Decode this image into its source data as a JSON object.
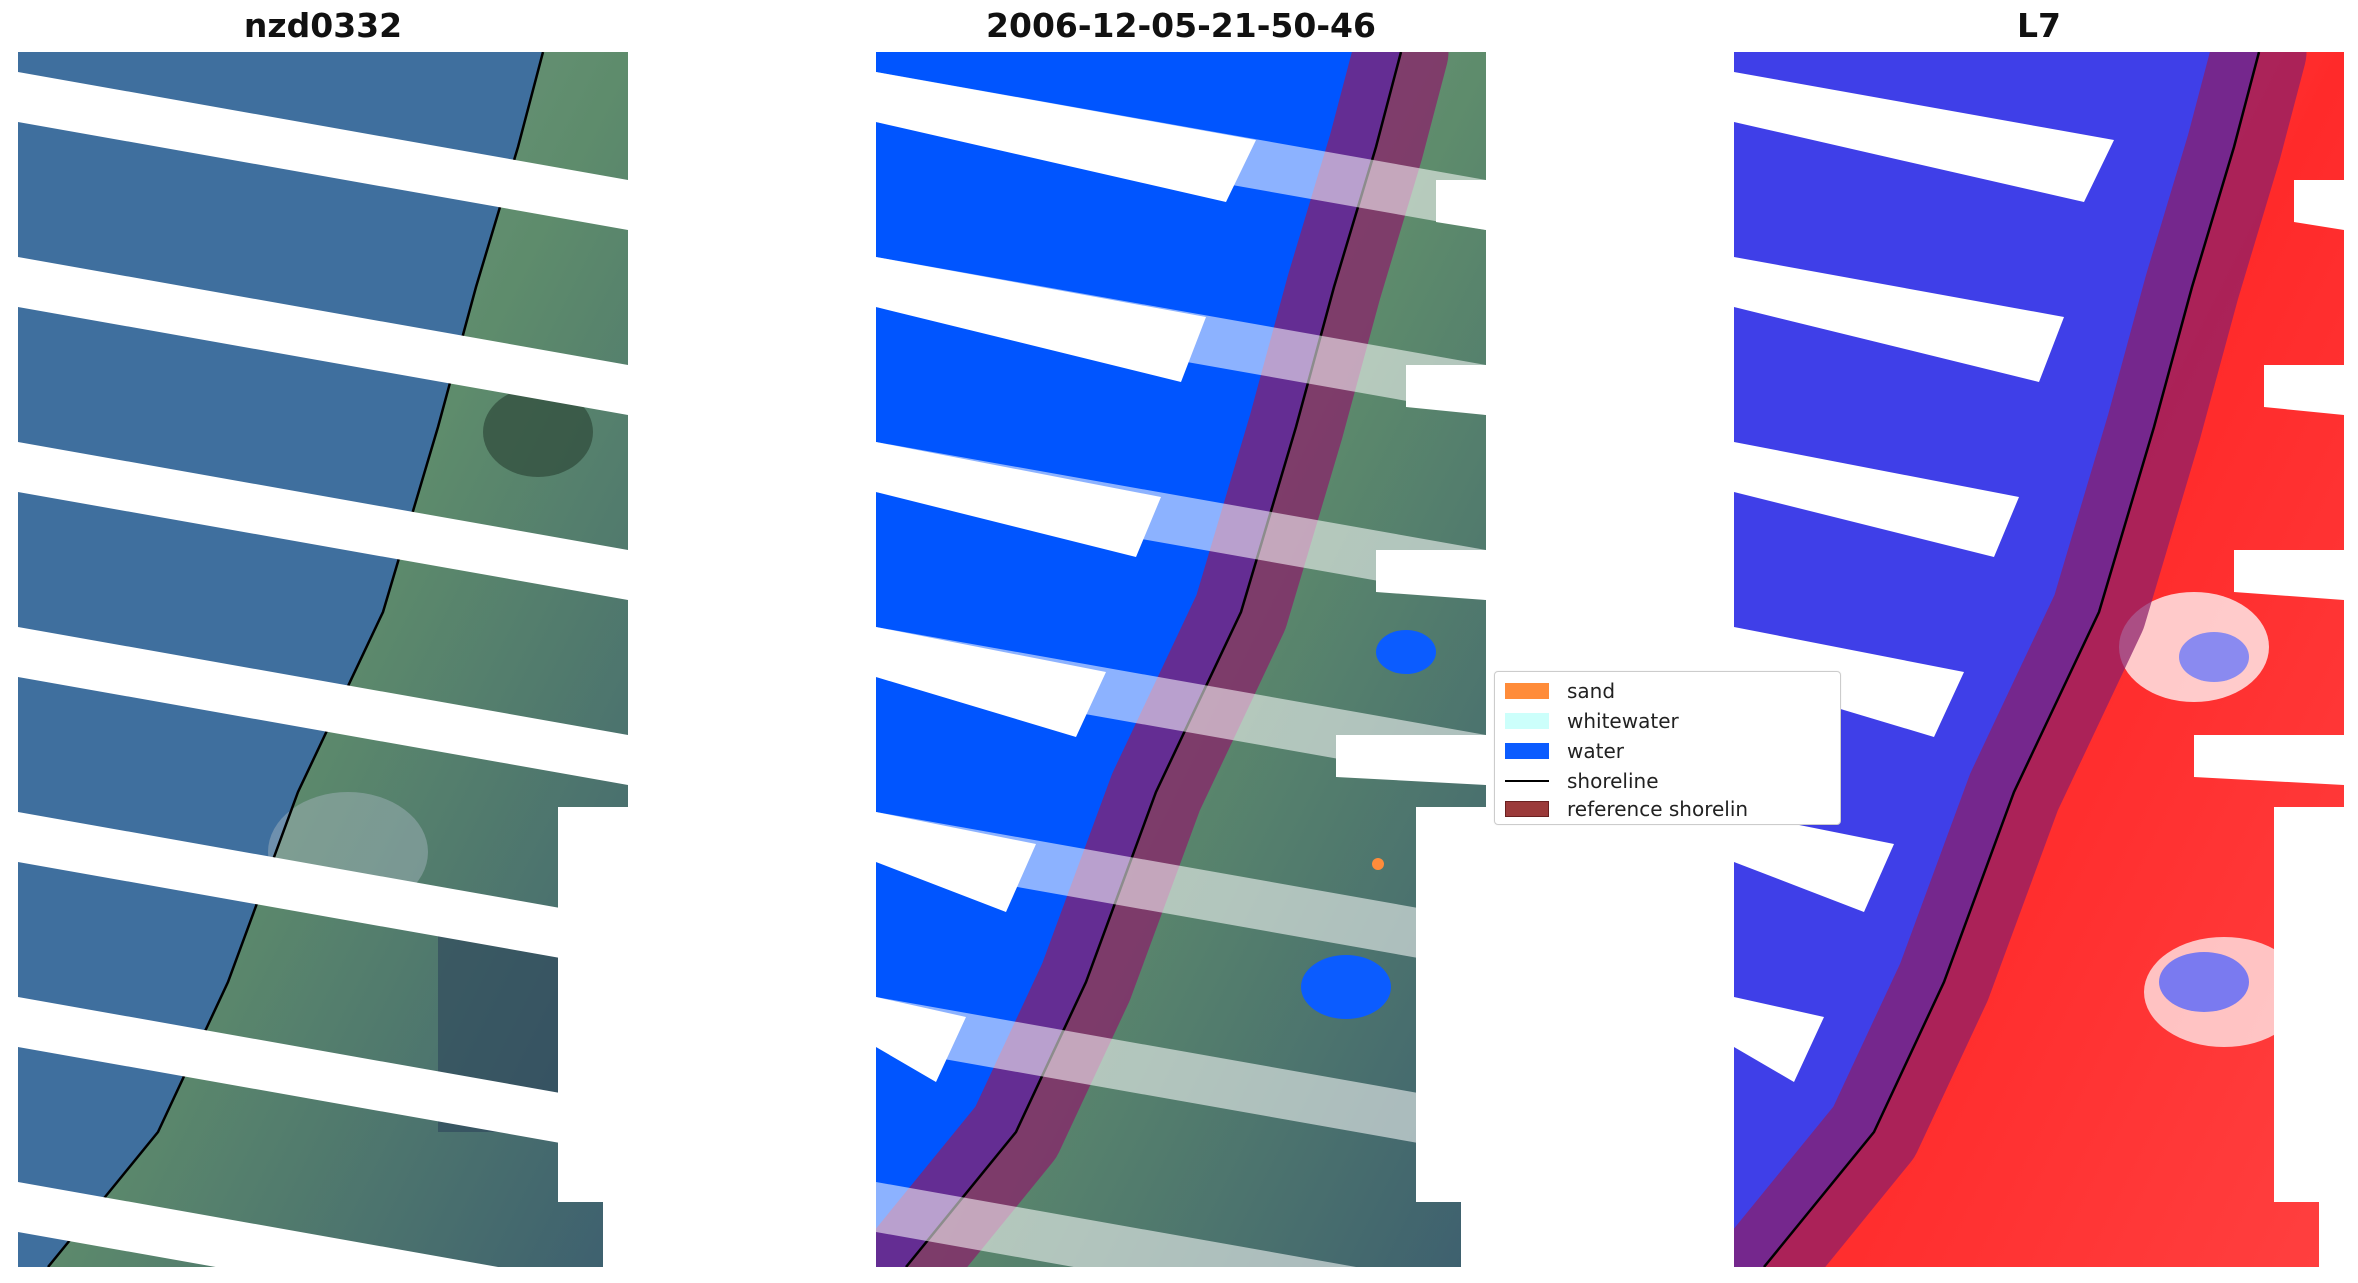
{
  "panels": [
    {
      "title": "nzd0332"
    },
    {
      "title": "2006-12-05-21-50-46"
    },
    {
      "title": "L7"
    }
  ],
  "legend": [
    {
      "label": "sand",
      "color": "#ff8c3a",
      "kind": "patch"
    },
    {
      "label": "whitewater",
      "color": "#ccfffb",
      "kind": "patch"
    },
    {
      "label": "water",
      "color": "#0b5cff",
      "kind": "patch"
    },
    {
      "label": "shoreline",
      "color": "#000000",
      "kind": "line"
    },
    {
      "label": "reference shorelin",
      "color": "#9b3a3a",
      "kind": "patch"
    }
  ],
  "colors": {
    "rgb_water": "#3f6f9e",
    "rgb_land": "#5f8f6f",
    "classified_water": "#0055ff",
    "index_water": "#3f3fe8",
    "index_land": "#ff2a2a",
    "buffer": "#8a1f6a",
    "gap": "#ffffff"
  }
}
